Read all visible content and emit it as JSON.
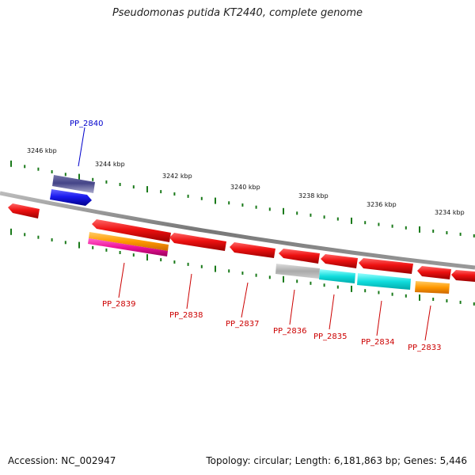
{
  "title": "Pseudomonas putida KT2440, complete genome",
  "footer": {
    "accession": "Accession: NC_002947",
    "info": "Topology: circular; Length: 6,181,863 bp; Genes: 5,446"
  },
  "colors": {
    "backbone": "#888888",
    "tick": "#1a7a1a",
    "plus_label": "#0000cc",
    "minus_label": "#cc0000",
    "cds_red": "#ee1111",
    "blue_gene": "#1a1aee",
    "purple_gene": "#444488",
    "orange_gene": "#ff9900",
    "magenta_gene": "#ee1199",
    "gray_gene": "#aaaaaa",
    "cyan_gene": "#11dddd"
  },
  "scale": {
    "unit": "kbp",
    "tick_labels": [
      "3246 kbp",
      "3244 kbp",
      "3242 kbp",
      "3240 kbp",
      "3238 kbp",
      "3236 kbp",
      "3234 kbp"
    ]
  },
  "genes": [
    {
      "label": "PP_2840",
      "strand": "plus",
      "color": "blue_gene"
    },
    {
      "label": "PP_2839",
      "strand": "minus",
      "color": "cds_red"
    },
    {
      "label": "PP_2838",
      "strand": "minus",
      "color": "cds_red"
    },
    {
      "label": "PP_2837",
      "strand": "minus",
      "color": "cds_red"
    },
    {
      "label": "PP_2836",
      "strand": "minus",
      "color": "cds_red"
    },
    {
      "label": "PP_2835",
      "strand": "minus",
      "color": "cds_red"
    },
    {
      "label": "PP_2834",
      "strand": "minus",
      "color": "cds_red"
    },
    {
      "label": "PP_2833",
      "strand": "minus",
      "color": "cds_red"
    }
  ]
}
